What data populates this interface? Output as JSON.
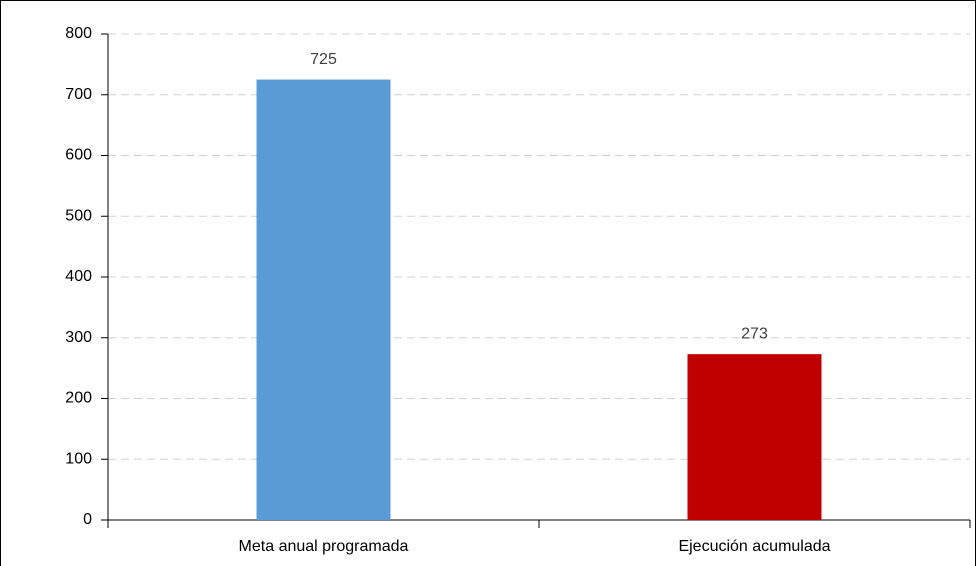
{
  "chart_data": {
    "type": "bar",
    "categories": [
      "Meta anual programada",
      "Ejecución acumulada"
    ],
    "values": [
      725,
      273
    ],
    "colors": [
      "#5b9bd5",
      "#c00000"
    ],
    "ylim": [
      0,
      800
    ],
    "yticks": [
      0,
      100,
      200,
      300,
      400,
      500,
      600,
      700,
      800
    ],
    "grid": true,
    "data_labels": true
  }
}
